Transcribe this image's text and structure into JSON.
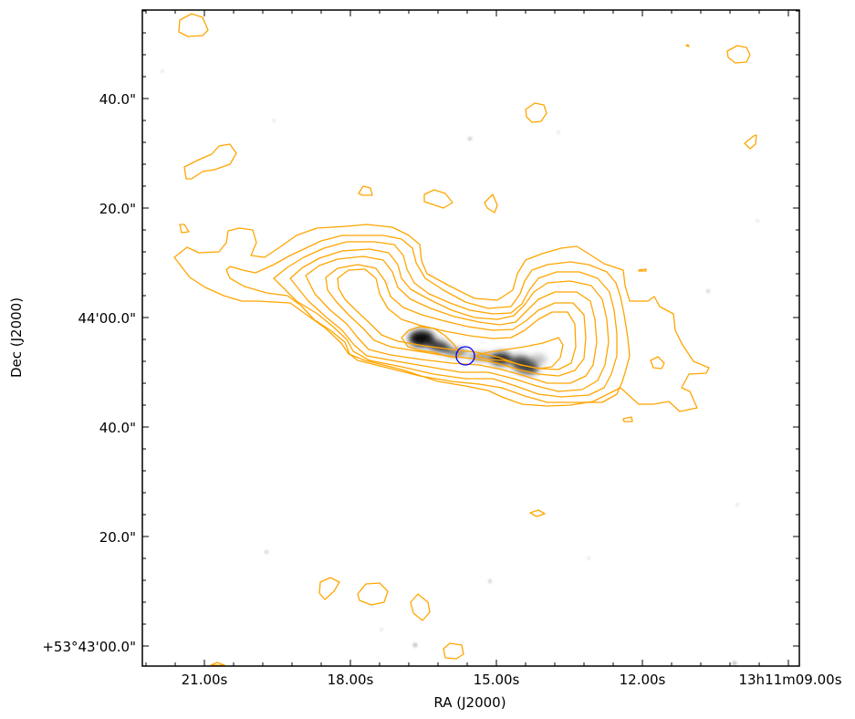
{
  "axes": {
    "xlabel": "RA (J2000)",
    "ylabel": "Dec (J2000)",
    "x_ticks": [
      "21.00s",
      "18.00s",
      "15.00s",
      "12.00s",
      "13h11m09.00s"
    ],
    "y_ticks": [
      "40.0\"",
      "20.0\"",
      "44'00.0\"",
      "40.0\"",
      "20.0\"",
      "+53°43'00.0\""
    ]
  },
  "colors": {
    "contour": "#ffa500",
    "marker": "#0000ff",
    "frame": "#000000",
    "background": "#ffffff"
  },
  "marker": {
    "shape": "circle"
  }
}
